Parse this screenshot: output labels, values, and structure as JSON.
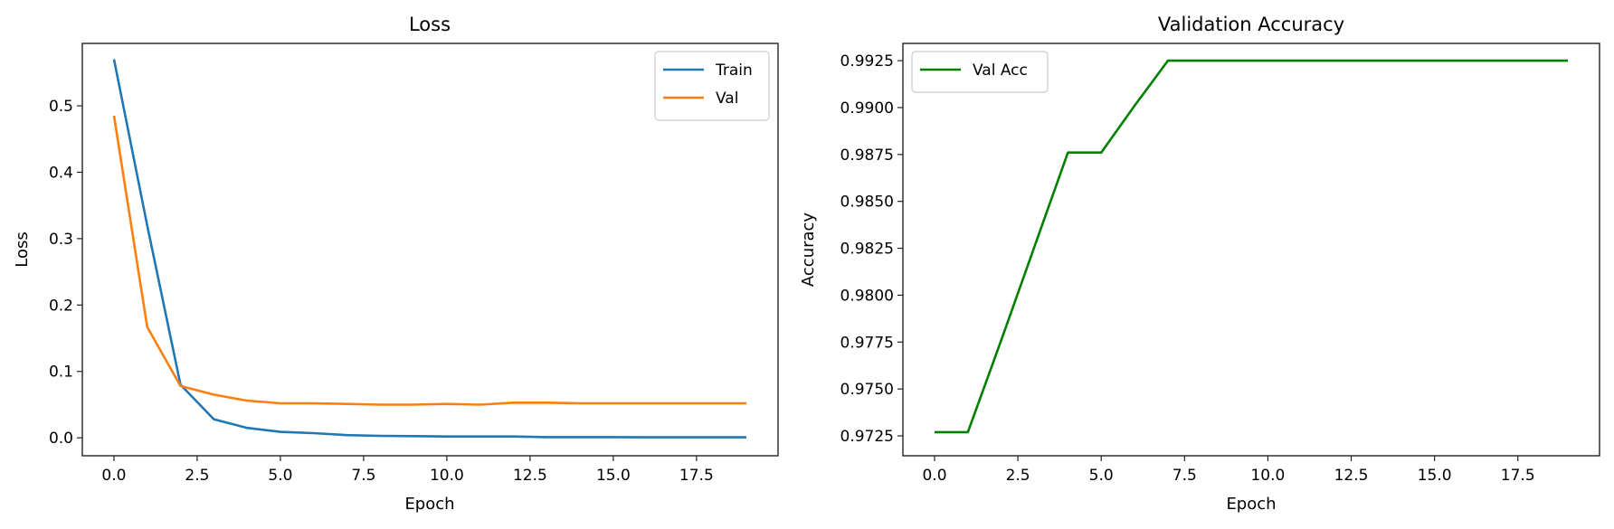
{
  "chart_data": [
    {
      "type": "line",
      "title": "Loss",
      "xlabel": "Epoch",
      "ylabel": "Loss",
      "xlim": [
        -0.95,
        19.95
      ],
      "ylim": [
        -0.027,
        0.594
      ],
      "xticks": [
        0,
        2.5,
        5,
        7.5,
        10,
        12.5,
        15,
        17.5
      ],
      "xtick_labels": [
        "0.0",
        "2.5",
        "5.0",
        "7.5",
        "10.0",
        "12.5",
        "15.0",
        "17.5"
      ],
      "yticks": [
        0,
        0.1,
        0.2,
        0.3,
        0.4,
        0.5
      ],
      "ytick_labels": [
        "0.0",
        "0.1",
        "0.2",
        "0.3",
        "0.4",
        "0.5"
      ],
      "grid": false,
      "legend": "top-right",
      "x": [
        0,
        1,
        2,
        3,
        4,
        5,
        6,
        7,
        8,
        9,
        10,
        11,
        12,
        13,
        14,
        15,
        16,
        17,
        18,
        19
      ],
      "series": [
        {
          "name": "Train",
          "color": "#1f77b4",
          "values": [
            0.57,
            0.32,
            0.08,
            0.028,
            0.015,
            0.009,
            0.007,
            0.004,
            0.003,
            0.0025,
            0.002,
            0.002,
            0.002,
            0.001,
            0.001,
            0.001,
            0.0008,
            0.0008,
            0.0008,
            0.0008
          ]
        },
        {
          "name": "Val",
          "color": "#ff7f0e",
          "values": [
            0.485,
            0.167,
            0.078,
            0.065,
            0.056,
            0.052,
            0.052,
            0.051,
            0.05,
            0.05,
            0.051,
            0.05,
            0.053,
            0.053,
            0.052,
            0.052,
            0.052,
            0.052,
            0.052,
            0.052
          ]
        }
      ]
    },
    {
      "type": "line",
      "title": "Validation Accuracy",
      "xlabel": "Epoch",
      "ylabel": "Accuracy",
      "xlim": [
        -0.95,
        19.95
      ],
      "ylim": [
        0.97144,
        0.99342
      ],
      "xticks": [
        0,
        2.5,
        5,
        7.5,
        10,
        12.5,
        15,
        17.5
      ],
      "xtick_labels": [
        "0.0",
        "2.5",
        "5.0",
        "7.5",
        "10.0",
        "12.5",
        "15.0",
        "17.5"
      ],
      "yticks": [
        0.9725,
        0.975,
        0.9775,
        0.98,
        0.9825,
        0.985,
        0.9875,
        0.99,
        0.9925
      ],
      "ytick_labels": [
        "0.9725",
        "0.9750",
        "0.9775",
        "0.9800",
        "0.9825",
        "0.9850",
        "0.9875",
        "0.9900",
        "0.9925"
      ],
      "grid": false,
      "legend": "top-left",
      "x": [
        0,
        1,
        2,
        3,
        4,
        5,
        6,
        7,
        8,
        9,
        10,
        11,
        12,
        13,
        14,
        15,
        16,
        17,
        18,
        19
      ],
      "series": [
        {
          "name": "Val Acc",
          "color": "#008000",
          "values": [
            0.9727,
            0.9727,
            0.9776,
            0.9826,
            0.9876,
            0.9876,
            0.9901,
            0.9925,
            0.9925,
            0.9925,
            0.9925,
            0.9925,
            0.9925,
            0.9925,
            0.9925,
            0.9925,
            0.9925,
            0.9925,
            0.9925,
            0.9925
          ]
        }
      ]
    }
  ]
}
